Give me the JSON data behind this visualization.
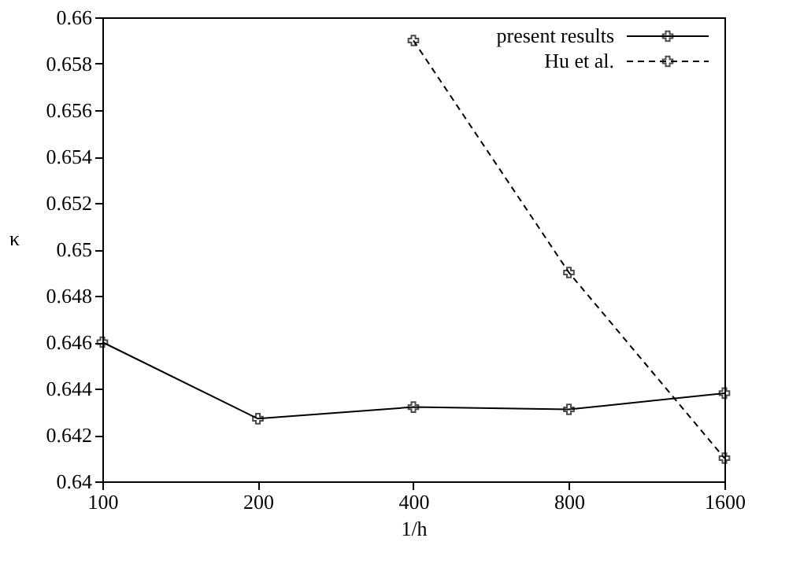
{
  "chart_data": {
    "type": "line",
    "xlabel": "1/h",
    "ylabel": "κ",
    "log": "x",
    "x": [
      100,
      200,
      400,
      800,
      1600
    ],
    "xlim": [
      100,
      1600
    ],
    "xticks": [
      100,
      200,
      400,
      800,
      1600
    ],
    "ylim": [
      0.64,
      0.66
    ],
    "yticks": [
      0.64,
      0.642,
      0.644,
      0.646,
      0.648,
      0.65,
      0.652,
      0.654,
      0.656,
      0.658,
      0.66
    ],
    "grid": false,
    "legend": "top right",
    "marker": "cross",
    "series": [
      {
        "name": "present results",
        "color": "#000000",
        "line_style": "solid",
        "values": [
          0.646,
          0.6427,
          0.6432,
          0.6431,
          0.6438
        ]
      },
      {
        "name": "Hu et al.",
        "color": "#000000",
        "line_style": "dashed",
        "x": [
          400,
          800,
          1600
        ],
        "values": [
          0.659,
          0.649,
          0.641
        ]
      }
    ]
  }
}
